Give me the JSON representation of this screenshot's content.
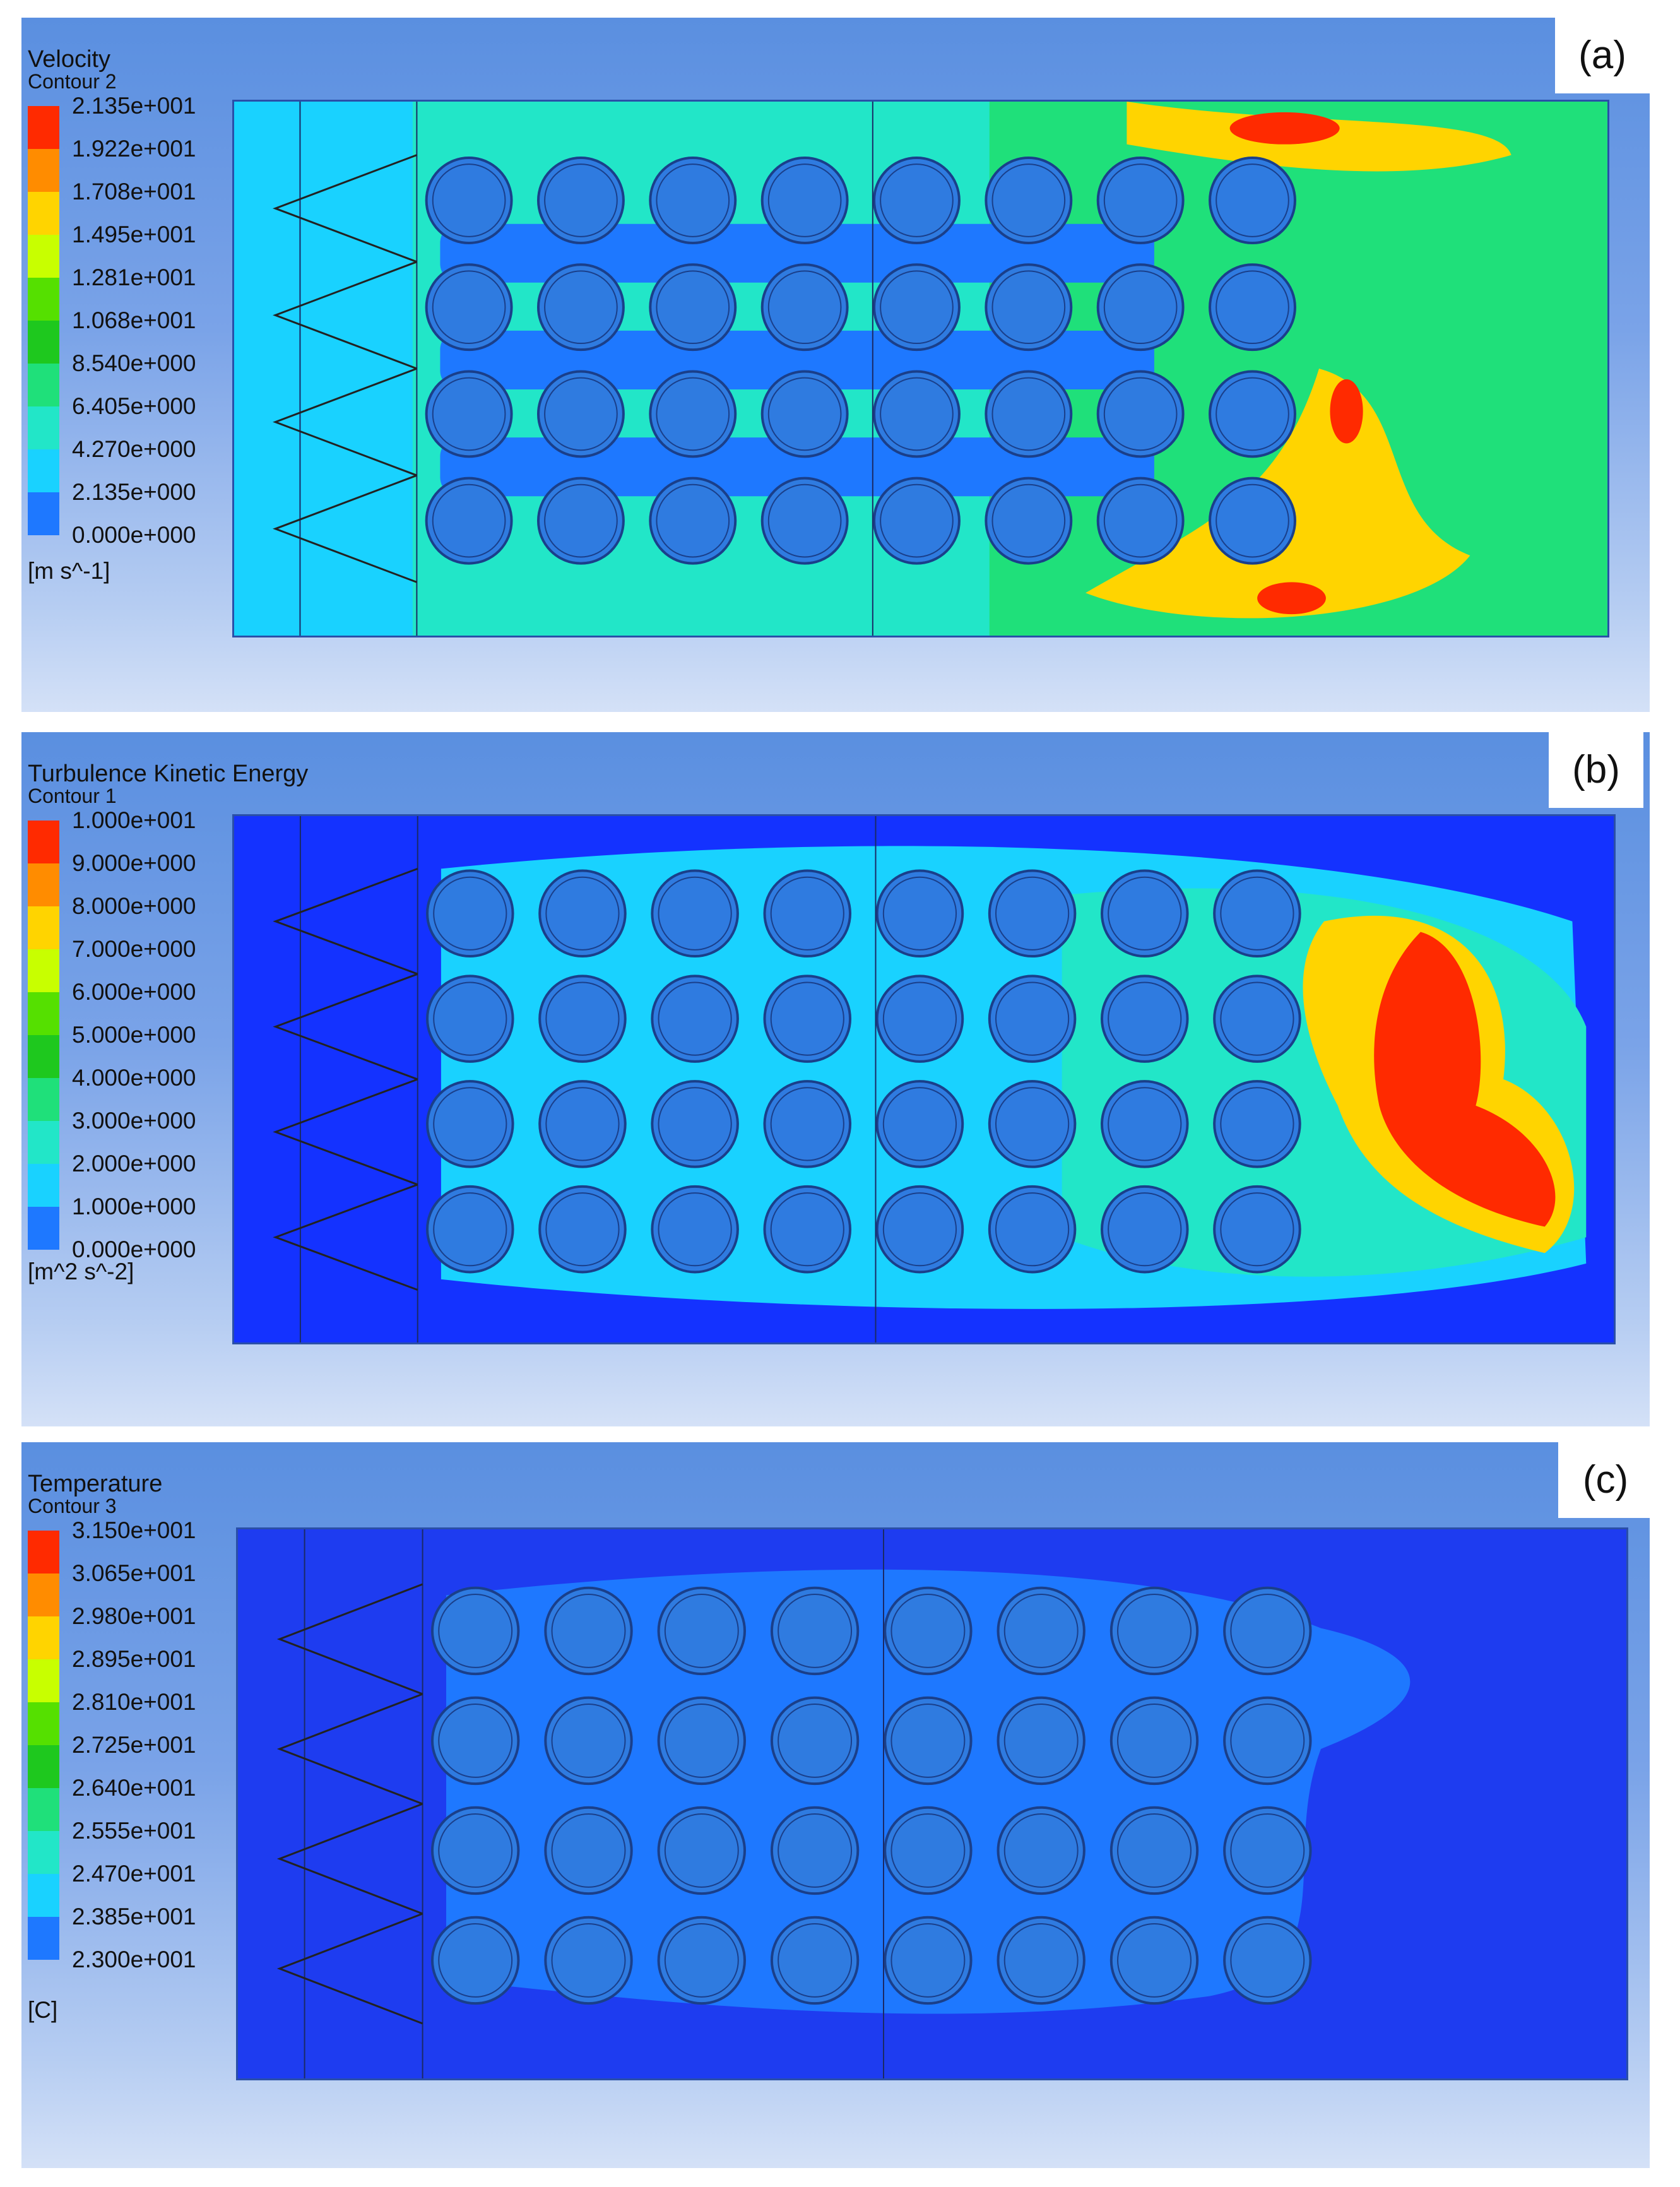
{
  "panels": [
    {
      "label": "(a)",
      "title": "Velocity",
      "subtitle": "Contour 2",
      "units": "[m s^-1]",
      "levels": [
        "2.135e+001",
        "1.922e+001",
        "1.708e+001",
        "1.495e+001",
        "1.281e+001",
        "1.068e+001",
        "8.540e+000",
        "6.405e+000",
        "4.270e+000",
        "2.135e+000",
        "0.000e+000"
      ],
      "colors": [
        "#ff2a00",
        "#ff8c00",
        "#ffd400",
        "#c8ff00",
        "#55e000",
        "#1ec81e",
        "#1fe07a",
        "#22e6c8",
        "#19d2ff",
        "#1e78ff",
        "#1432ff"
      ]
    },
    {
      "label": "(b)",
      "title": "Turbulence Kinetic Energy",
      "subtitle": "Contour 1",
      "units": "[m^2 s^-2]",
      "levels": [
        "1.000e+001",
        "9.000e+000",
        "8.000e+000",
        "7.000e+000",
        "6.000e+000",
        "5.000e+000",
        "4.000e+000",
        "3.000e+000",
        "2.000e+000",
        "1.000e+000",
        "0.000e+000"
      ],
      "colors": [
        "#ff2a00",
        "#ff8c00",
        "#ffd400",
        "#c8ff00",
        "#55e000",
        "#1ec81e",
        "#1fe07a",
        "#22e6c8",
        "#19d2ff",
        "#1e78ff",
        "#1432ff"
      ]
    },
    {
      "label": "(c)",
      "title": "Temperature",
      "subtitle": "Contour 3",
      "units": "[C]",
      "levels": [
        "3.150e+001",
        "3.065e+001",
        "2.980e+001",
        "2.895e+001",
        "2.810e+001",
        "2.725e+001",
        "2.640e+001",
        "2.555e+001",
        "2.470e+001",
        "2.385e+001",
        "2.300e+001"
      ],
      "colors": [
        "#ff2a00",
        "#ff8c00",
        "#ffd400",
        "#c8ff00",
        "#55e000",
        "#1ec81e",
        "#1fe07a",
        "#22e6c8",
        "#19d2ff",
        "#1e78ff",
        "#1432ff"
      ]
    }
  ],
  "tube_grid": {
    "rows": 4,
    "columns": 8
  },
  "colors": {
    "tube_fill": "#2f7be0",
    "tube_rim": "#1a3f8a",
    "background_low": "#1e3cf0"
  }
}
